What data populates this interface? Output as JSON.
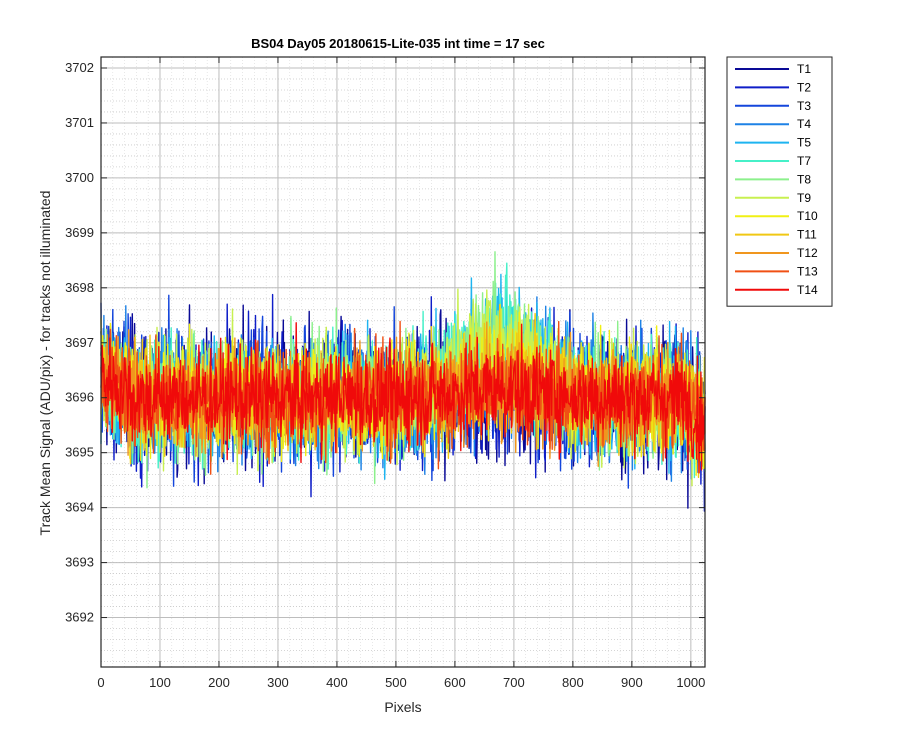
{
  "chart_data": {
    "type": "line",
    "title": "BS04 Day05 20180615-Lite-035 int time = 17 sec",
    "xlabel": "Pixels",
    "ylabel": "Track Mean Signal (ADU/pix) - for tracks not illuminated",
    "xlim": [
      0,
      1024
    ],
    "ylim": [
      3691.1,
      3702.2
    ],
    "xticks": [
      0,
      100,
      200,
      300,
      400,
      500,
      600,
      700,
      800,
      900,
      1000
    ],
    "yticks": [
      3692,
      3693,
      3694,
      3695,
      3696,
      3697,
      3698,
      3699,
      3700,
      3701,
      3702
    ],
    "grid": true,
    "minor_grid": true,
    "legend_position": "outside-top-right",
    "baseline_mean": 3696.0,
    "series": [
      {
        "name": "T1",
        "color": "#0a0a96"
      },
      {
        "name": "T2",
        "color": "#0f1ec8"
      },
      {
        "name": "T3",
        "color": "#1446dc"
      },
      {
        "name": "T4",
        "color": "#1e82e6"
      },
      {
        "name": "T5",
        "color": "#1eb4f0"
      },
      {
        "name": "T7",
        "color": "#46f0c8"
      },
      {
        "name": "T8",
        "color": "#8cf08c"
      },
      {
        "name": "T9",
        "color": "#c8f050"
      },
      {
        "name": "T10",
        "color": "#f0f014"
      },
      {
        "name": "T11",
        "color": "#f0c814"
      },
      {
        "name": "T12",
        "color": "#f0961e"
      },
      {
        "name": "T13",
        "color": "#f05014"
      },
      {
        "name": "T14",
        "color": "#f00a0a"
      }
    ]
  }
}
